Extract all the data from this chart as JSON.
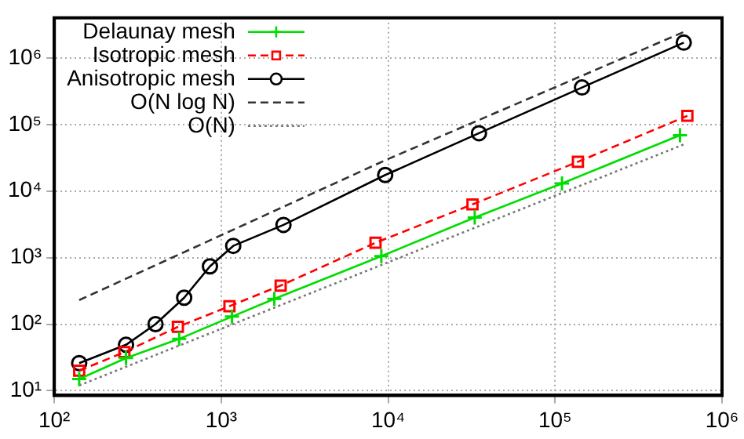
{
  "chart_data": {
    "type": "line",
    "log": "xy",
    "grid": true,
    "legend": "top left",
    "xlim": [
      100,
      1000000
    ],
    "ylim": [
      8.5,
      4000000
    ],
    "xticks": [
      {
        "value": 100,
        "label": "10²"
      },
      {
        "value": 1000,
        "label": "10³"
      },
      {
        "value": 10000,
        "label": "10⁴"
      },
      {
        "value": 100000,
        "label": "10⁵"
      },
      {
        "value": 1000000,
        "label": "10⁶"
      }
    ],
    "yticks": [
      {
        "value": 10,
        "label": "10¹"
      },
      {
        "value": 100,
        "label": "10²"
      },
      {
        "value": 1000,
        "label": "10³"
      },
      {
        "value": 10000,
        "label": "10⁴"
      },
      {
        "value": 100000,
        "label": "10⁵"
      },
      {
        "value": 1000000,
        "label": "10⁶"
      }
    ],
    "series": [
      {
        "name": "Delaunay mesh",
        "color": "#00dd00",
        "marker": "cross",
        "line_style": "solid",
        "x": [
          141,
          269,
          560,
          1160,
          2080,
          9100,
          33000,
          110000,
          560000
        ],
        "values": [
          15,
          31,
          60,
          130,
          240,
          1050,
          4000,
          13000,
          69000
        ]
      },
      {
        "name": "Isotropic mesh",
        "color": "#ff0000",
        "marker": "square",
        "line_style": "dashed",
        "x": [
          141,
          263,
          550,
          1120,
          2270,
          8400,
          32000,
          137000,
          620000
        ],
        "values": [
          20,
          38,
          91,
          186,
          380,
          1670,
          6300,
          27500,
          135000
        ]
      },
      {
        "name": "Anisotropic mesh",
        "color": "#000000",
        "marker": "circle",
        "line_style": "solid",
        "x": [
          141,
          269,
          404,
          600,
          856,
          1180,
          2360,
          9600,
          35000,
          145000,
          590000
        ],
        "values": [
          26,
          49,
          100,
          250,
          740,
          1500,
          3100,
          17400,
          74000,
          360000,
          1700000
        ]
      },
      {
        "name": "O(N log N)",
        "color": "#333333",
        "marker": "none",
        "line_style": "dashed",
        "x": [
          141,
          9600,
          600000
        ],
        "values": [
          230,
          29000,
          2500000
        ]
      },
      {
        "name": "O(N)",
        "color": "#777777",
        "marker": "none",
        "line_style": "dotted",
        "x": [
          141,
          600000
        ],
        "values": [
          12,
          51000
        ]
      }
    ]
  }
}
